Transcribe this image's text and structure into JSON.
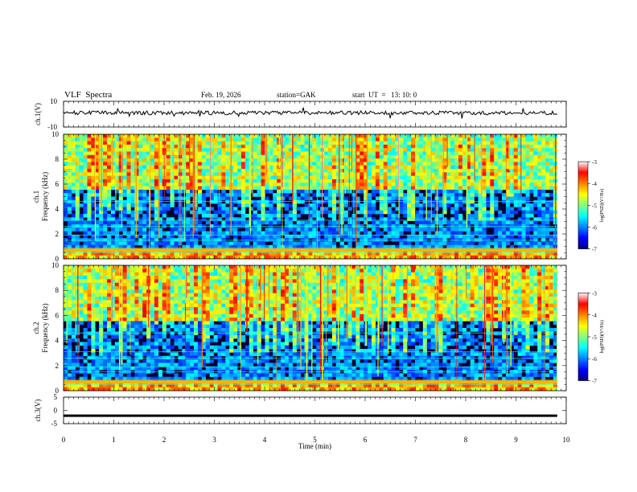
{
  "header": {
    "title": "VLF  Spectra",
    "date": "Feb. 19, 2026",
    "station": "station=GAK",
    "start": "start  UT  =   13: 10: 0"
  },
  "chart_data": [
    {
      "type": "line",
      "panel": "ch1-waveform",
      "ylabel": "ch.1(V)",
      "xlim": [
        0,
        10
      ],
      "ylim": [
        -10,
        10
      ],
      "yticklabels": [
        "10",
        "-10"
      ],
      "description_values": {
        "mean_level_V": 1,
        "data_end_min": 9.82
      }
    },
    {
      "type": "heatmap",
      "panel": "ch1-spectrogram",
      "ylabel": "ch.1\nFrequency  (kHz)",
      "xlim": [
        0,
        10
      ],
      "ylim": [
        0,
        10
      ],
      "yticks": [
        0,
        2,
        4,
        6,
        8,
        10
      ],
      "colorbar": {
        "label": "log(PSD)(V²/Hz)",
        "range": [
          -7,
          -3
        ],
        "ticks": [
          "-3",
          "-4",
          "-5",
          "-6",
          "-7"
        ]
      },
      "data_end_min": 9.82
    },
    {
      "type": "heatmap",
      "panel": "ch2-spectrogram",
      "ylabel": "ch.2\nFrequency  (kHz)",
      "xlim": [
        0,
        10
      ],
      "ylim": [
        0,
        10
      ],
      "yticks": [
        0,
        2,
        4,
        6,
        8,
        10
      ],
      "colorbar": {
        "label": "log(PSD)(V²/Hz)",
        "range": [
          -7,
          -3
        ],
        "ticks": [
          "-3",
          "-4",
          "-5",
          "-6",
          "-7"
        ]
      },
      "data_end_min": 9.82
    },
    {
      "type": "line",
      "panel": "ch3-waveform",
      "ylabel": "ch.3(V)",
      "xlim": [
        0,
        10
      ],
      "ylim": [
        -5,
        5
      ],
      "yticklabels": [
        "5",
        "0",
        "-5"
      ],
      "description_values": {
        "mean_level_V": -2,
        "data_end_min": 9.82
      }
    }
  ],
  "xaxis": {
    "label": "Time  (min)",
    "ticks": [
      "0",
      "1",
      "2",
      "3",
      "4",
      "5",
      "6",
      "7",
      "8",
      "9",
      "10"
    ]
  },
  "colors": {
    "jet": [
      "#000080",
      "#0000ff",
      "#0080ff",
      "#00ffff",
      "#80ff80",
      "#ffff00",
      "#ff8000",
      "#ff0000",
      "#ffffff"
    ]
  }
}
